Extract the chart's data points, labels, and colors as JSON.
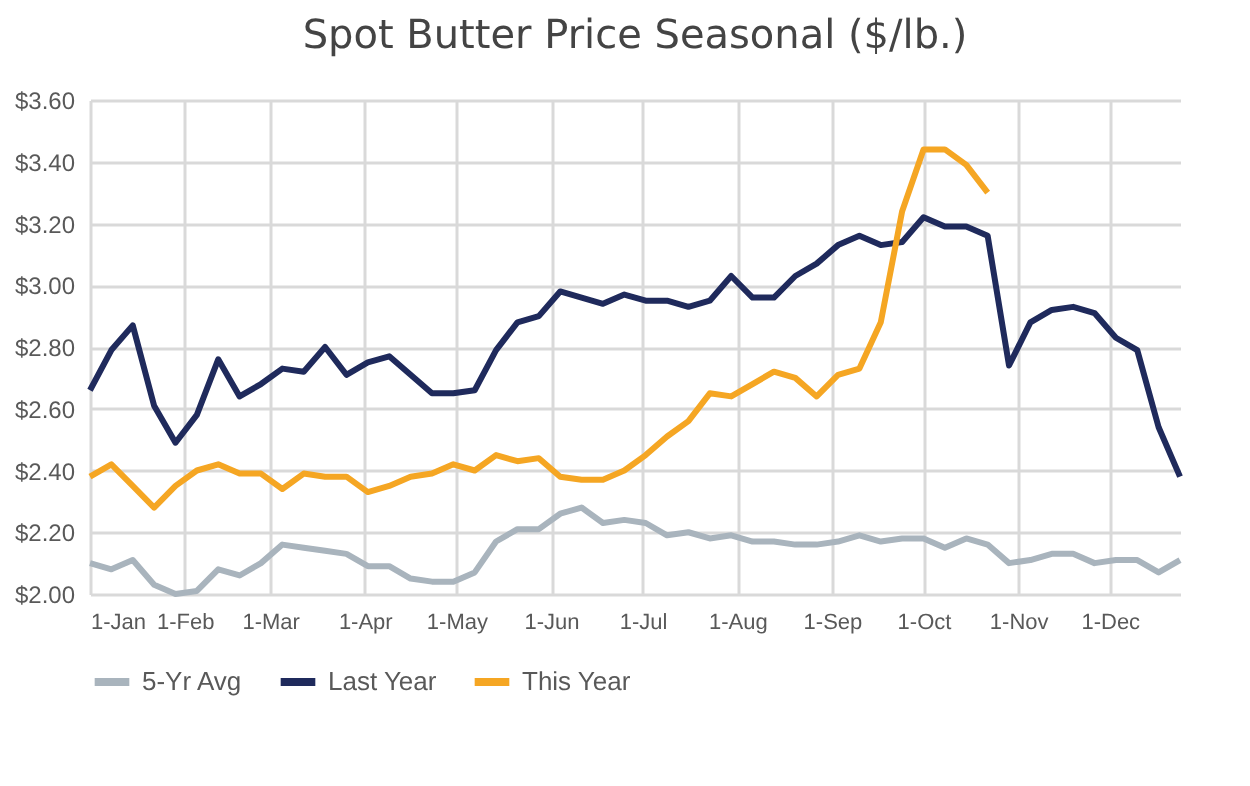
{
  "chart_data": {
    "type": "line",
    "title": "Spot Butter Price Seasonal ($/lb.)",
    "x": [
      "--01-01",
      "--01-08",
      "--01-15",
      "--01-22",
      "--01-29",
      "--02-05",
      "--02-12",
      "--02-19",
      "--02-26",
      "--03-05",
      "--03-12",
      "--03-19",
      "--03-26",
      "--04-02",
      "--04-09",
      "--04-16",
      "--04-23",
      "--04-30",
      "--05-07",
      "--05-14",
      "--05-21",
      "--05-28",
      "--06-04",
      "--06-11",
      "--06-18",
      "--06-25",
      "--07-02",
      "--07-09",
      "--07-16",
      "--07-23",
      "--07-30",
      "--08-06",
      "--08-13",
      "--08-20",
      "--08-27",
      "--09-03",
      "--09-10",
      "--09-17",
      "--09-24",
      "--10-01",
      "--10-08",
      "--10-15",
      "--10-22",
      "--10-29",
      "--11-05",
      "--11-12",
      "--11-19",
      "--11-26",
      "--12-03",
      "--12-10",
      "--12-17",
      "--12-24"
    ],
    "series": [
      {
        "name": "5-Yr Avg",
        "color": "#a9b4bd",
        "values": [
          2.1,
          2.08,
          2.11,
          2.03,
          2.0,
          2.01,
          2.08,
          2.06,
          2.1,
          2.16,
          2.15,
          2.14,
          2.13,
          2.09,
          2.09,
          2.05,
          2.04,
          2.04,
          2.07,
          2.17,
          2.21,
          2.21,
          2.26,
          2.28,
          2.23,
          2.24,
          2.23,
          2.19,
          2.2,
          2.18,
          2.19,
          2.17,
          2.17,
          2.16,
          2.16,
          2.17,
          2.19,
          2.17,
          2.18,
          2.18,
          2.15,
          2.18,
          2.16,
          2.1,
          2.11,
          2.13,
          2.13,
          2.1,
          2.11,
          2.11,
          2.07,
          2.11
        ]
      },
      {
        "name": "Last Year",
        "color": "#1f2a5c",
        "values": [
          2.66,
          2.79,
          2.87,
          2.61,
          2.49,
          2.58,
          2.76,
          2.64,
          2.68,
          2.73,
          2.72,
          2.8,
          2.71,
          2.75,
          2.77,
          2.71,
          2.65,
          2.65,
          2.66,
          2.79,
          2.88,
          2.9,
          2.98,
          2.96,
          2.94,
          2.97,
          2.95,
          2.95,
          2.93,
          2.95,
          3.03,
          2.96,
          2.96,
          3.03,
          3.07,
          3.13,
          3.16,
          3.13,
          3.14,
          3.22,
          3.19,
          3.19,
          3.16,
          2.74,
          2.88,
          2.92,
          2.93,
          2.91,
          2.83,
          2.79,
          2.54,
          2.38
        ]
      },
      {
        "name": "This Year",
        "color": "#f5a623",
        "values": [
          2.38,
          2.42,
          2.35,
          2.28,
          2.35,
          2.4,
          2.42,
          2.39,
          2.39,
          2.34,
          2.39,
          2.38,
          2.38,
          2.33,
          2.35,
          2.38,
          2.39,
          2.42,
          2.4,
          2.45,
          2.43,
          2.44,
          2.38,
          2.37,
          2.37,
          2.4,
          2.45,
          2.51,
          2.56,
          2.65,
          2.64,
          2.68,
          2.72,
          2.7,
          2.64,
          2.71,
          2.73,
          2.88,
          3.24,
          3.44,
          3.44,
          3.39,
          3.3,
          null,
          null,
          null,
          null,
          null,
          null,
          null,
          null,
          null
        ]
      }
    ],
    "xlim": [
      "--01-01",
      "--12-24"
    ],
    "xticks": [
      {
        "value": "--01-01",
        "label": "1-Jan"
      },
      {
        "value": "--02-01",
        "label": "1-Feb"
      },
      {
        "value": "--03-01",
        "label": "1-Mar"
      },
      {
        "value": "--04-01",
        "label": "1-Apr"
      },
      {
        "value": "--05-01",
        "label": "1-May"
      },
      {
        "value": "--06-01",
        "label": "1-Jun"
      },
      {
        "value": "--07-01",
        "label": "1-Jul"
      },
      {
        "value": "--08-01",
        "label": "1-Aug"
      },
      {
        "value": "--09-01",
        "label": "1-Sep"
      },
      {
        "value": "--10-01",
        "label": "1-Oct"
      },
      {
        "value": "--11-01",
        "label": "1-Nov"
      },
      {
        "value": "--12-01",
        "label": "1-Dec"
      }
    ],
    "ylim": [
      2.0,
      3.6
    ],
    "yticks": [
      {
        "value": 2.0,
        "label": "$2.00"
      },
      {
        "value": 2.2,
        "label": "$2.20"
      },
      {
        "value": 2.4,
        "label": "$2.40"
      },
      {
        "value": 2.6,
        "label": "$2.60"
      },
      {
        "value": 2.8,
        "label": "$2.80"
      },
      {
        "value": 3.0,
        "label": "$3.00"
      },
      {
        "value": 3.2,
        "label": "$3.20"
      },
      {
        "value": 3.4,
        "label": "$3.40"
      },
      {
        "value": 3.6,
        "label": "$3.60"
      }
    ],
    "grid": true,
    "legend": "bottom",
    "line_style": "solid",
    "marker": "none"
  }
}
